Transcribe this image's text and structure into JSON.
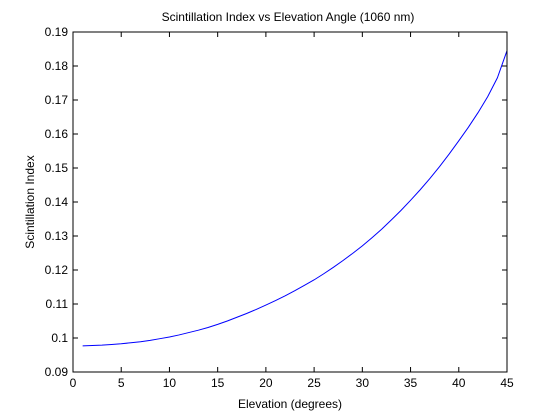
{
  "chart_data": {
    "type": "line",
    "title": "Scintillation Index vs Elevation Angle (1060 nm)",
    "xlabel": "Elevation (degrees)",
    "ylabel": "Scintillation Index",
    "xlim": [
      0,
      45
    ],
    "ylim": [
      0.09,
      0.19
    ],
    "x_ticks": [
      0,
      5,
      10,
      15,
      20,
      25,
      30,
      35,
      40,
      45
    ],
    "y_ticks": [
      0.09,
      0.1,
      0.11,
      0.12,
      0.13,
      0.14,
      0.15,
      0.16,
      0.17,
      0.18,
      0.19
    ],
    "x_tick_labels": [
      "0",
      "5",
      "10",
      "15",
      "20",
      "25",
      "30",
      "35",
      "40",
      "45"
    ],
    "y_tick_labels": [
      "0.09",
      "0.1",
      "0.11",
      "0.12",
      "0.13",
      "0.14",
      "0.15",
      "0.16",
      "0.17",
      "0.18",
      "0.19"
    ],
    "grid": false,
    "series": [
      {
        "color": "#0000ff",
        "x": [
          1,
          2,
          3,
          4,
          5,
          6,
          7,
          8,
          9,
          10,
          11,
          12,
          13,
          14,
          15,
          16,
          17,
          18,
          19,
          20,
          21,
          22,
          23,
          24,
          25,
          26,
          27,
          28,
          29,
          30,
          31,
          32,
          33,
          34,
          35,
          36,
          37,
          38,
          39,
          40,
          41,
          42,
          43,
          44,
          45
        ],
        "values": [
          0.0977,
          0.0978,
          0.0979,
          0.0981,
          0.0983,
          0.0986,
          0.0989,
          0.0993,
          0.0998,
          0.1003,
          0.1009,
          0.1016,
          0.1023,
          0.1031,
          0.104,
          0.105,
          0.1061,
          0.1072,
          0.1084,
          0.1097,
          0.111,
          0.1124,
          0.1139,
          0.1155,
          0.1171,
          0.1189,
          0.1208,
          0.1228,
          0.1249,
          0.1271,
          0.1295,
          0.132,
          0.1347,
          0.1375,
          0.1405,
          0.1436,
          0.1469,
          0.1504,
          0.1541,
          0.158,
          0.162,
          0.1663,
          0.171,
          0.1765,
          0.1845
        ]
      }
    ]
  }
}
